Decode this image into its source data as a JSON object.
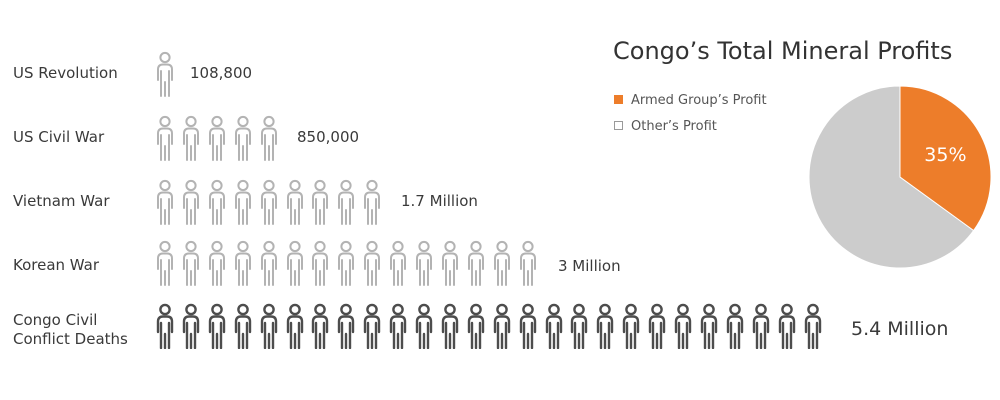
{
  "chart_data": [
    {
      "type": "bar",
      "categories": [
        "US Revolution",
        "US Civil War",
        "Vietnam War",
        "Korean War",
        "Congo Civil Conflict Deaths"
      ],
      "values": [
        108800,
        850000,
        1700000,
        3000000,
        5400000
      ],
      "value_labels": [
        "108,800",
        "850,000",
        "1.7 Million",
        "3 Million",
        "5.4 Million"
      ],
      "icon_counts": [
        1,
        5,
        9,
        15,
        26
      ],
      "icon": "person-icon",
      "colors": {
        "icon_light": "#b3b3b3",
        "icon_dark": "#4d4d4d"
      }
    },
    {
      "type": "pie",
      "title": "Congo’s Total Mineral Profits",
      "slices": [
        {
          "name": "Armed Group’s Profit",
          "value": 35,
          "label": "35%",
          "color": "#ed7d2a"
        },
        {
          "name": "Other’s Profit",
          "value": 65,
          "label": "",
          "color": "#cccccc"
        }
      ],
      "legend_placement": "left"
    }
  ]
}
